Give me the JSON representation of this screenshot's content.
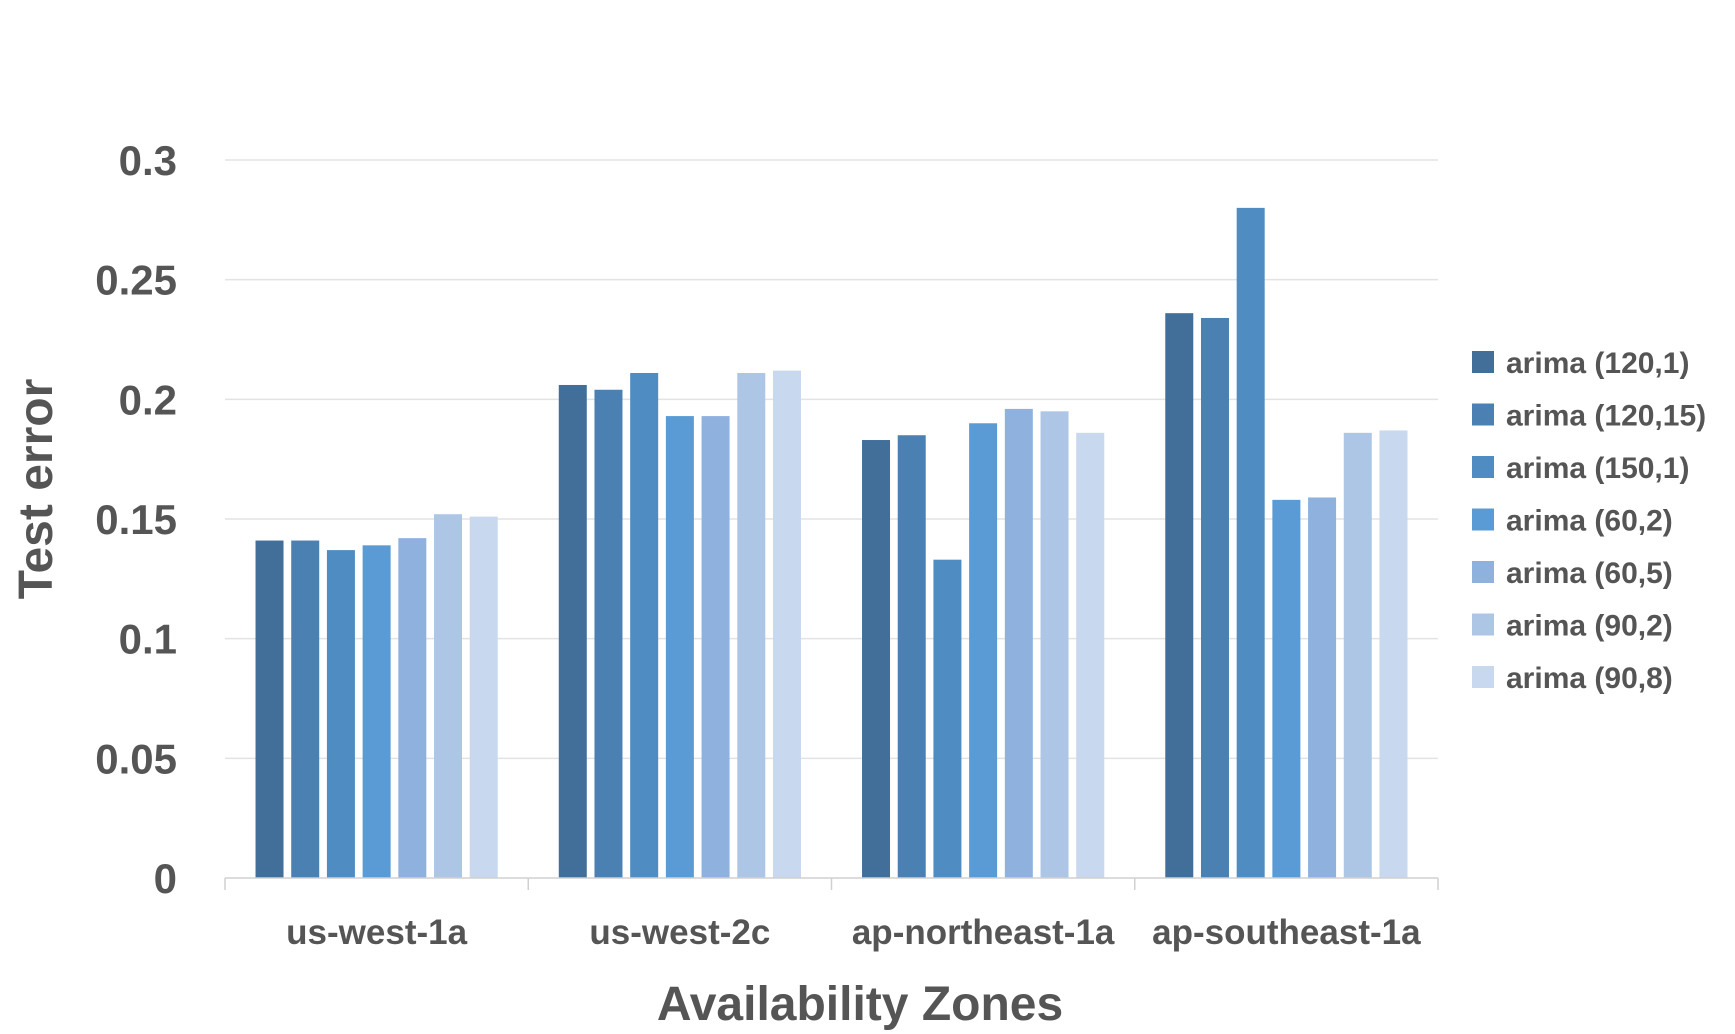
{
  "chart_data": {
    "type": "bar",
    "title": "",
    "xlabel": "Availability Zones",
    "ylabel": "Test error",
    "ylim": [
      0,
      0.3
    ],
    "yticks": [
      "0",
      "0.05",
      "0.1",
      "0.15",
      "0.2",
      "0.25",
      "0.3"
    ],
    "grid": true,
    "legend_position": "right",
    "categories": [
      "us-west-1a",
      "us-west-2c",
      "ap-northeast-1a",
      "ap-southeast-1a"
    ],
    "series": [
      {
        "name": "arima (120,1)",
        "color": "#426f99",
        "values": [
          0.141,
          0.206,
          0.183,
          0.236
        ]
      },
      {
        "name": "arima (120,15)",
        "color": "#4a80b2",
        "values": [
          0.141,
          0.204,
          0.185,
          0.234
        ]
      },
      {
        "name": "arima (150,1)",
        "color": "#4f8cc2",
        "values": [
          0.137,
          0.211,
          0.133,
          0.28
        ]
      },
      {
        "name": "arima (60,2)",
        "color": "#5b9bd5",
        "values": [
          0.139,
          0.193,
          0.19,
          0.158
        ]
      },
      {
        "name": "arima (60,5)",
        "color": "#8eb2dd",
        "values": [
          0.142,
          0.193,
          0.196,
          0.159
        ]
      },
      {
        "name": "arima (90,2)",
        "color": "#adc6e6",
        "values": [
          0.152,
          0.211,
          0.195,
          0.186
        ]
      },
      {
        "name": "arima (90,8)",
        "color": "#c8d8ee",
        "values": [
          0.151,
          0.212,
          0.186,
          0.187
        ]
      }
    ]
  }
}
